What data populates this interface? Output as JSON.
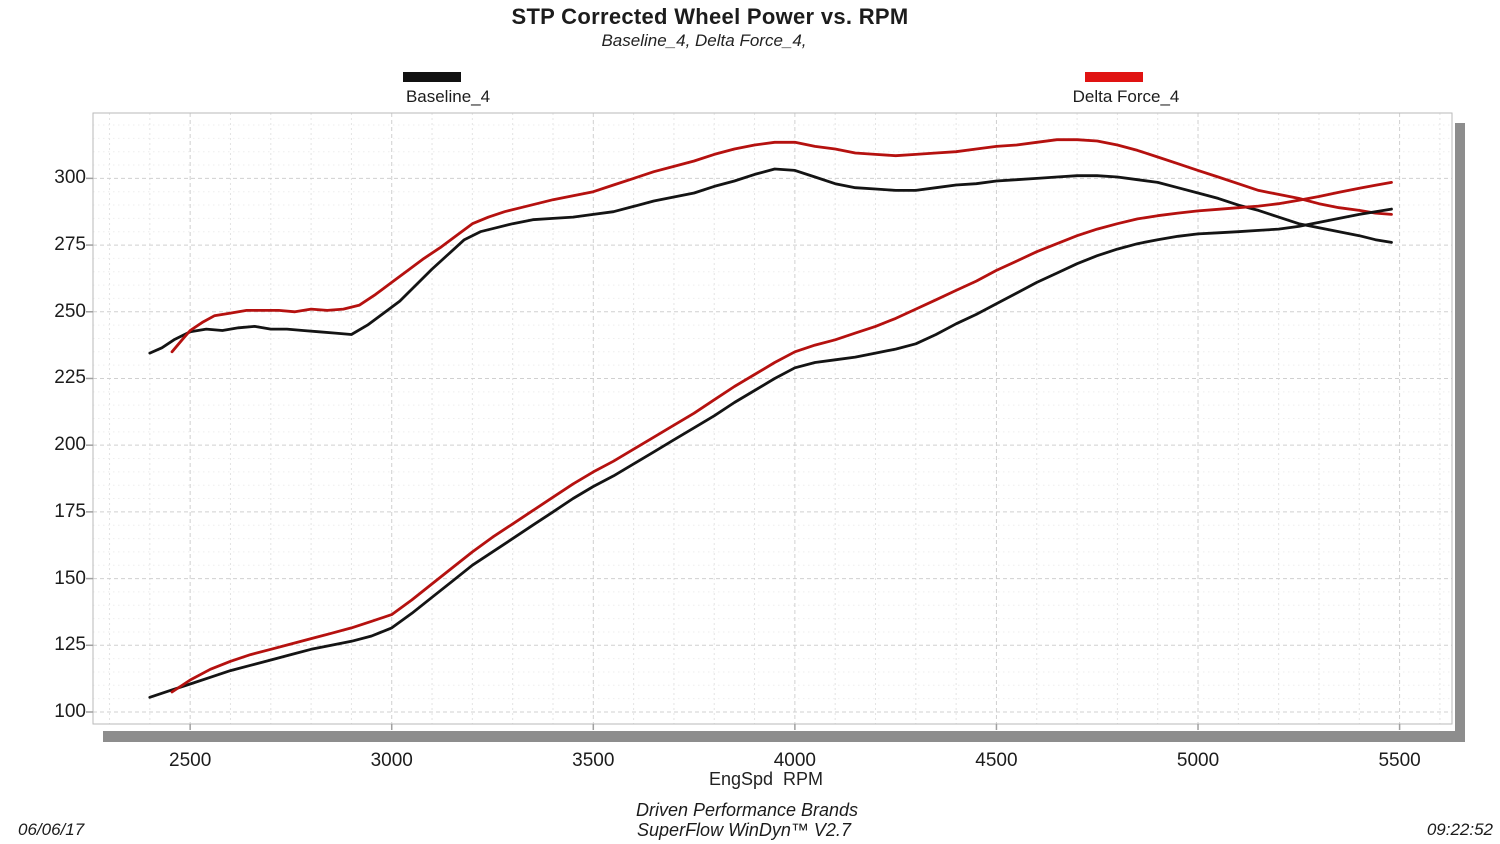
{
  "header": {
    "title": "STP Corrected Wheel Power vs. RPM",
    "subtitle": "Baseline_4, Delta Force_4,"
  },
  "footer": {
    "xaxis_unit_label": "EngSpd  RPM",
    "brand_line1": "Driven Performance Brands",
    "brand_line2": "SuperFlow WinDyn™ V2.7",
    "date": "06/06/17",
    "time": "09:22:52"
  },
  "colors": {
    "curve_black": "#141414",
    "curve_red": "#b5110f",
    "legend_black": "#111111",
    "legend_red": "#e01312",
    "grid_major": "#d0d0d0",
    "grid_minor_v": "#e4e4e4",
    "grid_minor_h": "#eeeeee",
    "frame": "#bababa",
    "shadow": "#8d8d8d",
    "tick": "#a0a0a0"
  },
  "chart_data": {
    "type": "line",
    "title": "STP Corrected Wheel Power vs. RPM",
    "subtitle": "Baseline_4, Delta Force_4,",
    "xlabel": "EngSpd  RPM",
    "ylabel": "",
    "grid": true,
    "legend_position": "top",
    "x_axis": {
      "range": [
        2259,
        5630
      ],
      "ticks": [
        2500,
        3000,
        3500,
        4000,
        4500,
        5000,
        5500
      ],
      "minor_step": 100
    },
    "y_axis": {
      "range": [
        95.5,
        324.5
      ],
      "ticks": [
        300,
        275,
        250,
        225,
        200,
        175,
        150,
        125,
        100
      ],
      "minor_step": 5
    },
    "legend": [
      {
        "label": "Baseline_4",
        "color": "#111111"
      },
      {
        "label": "Delta Force_4",
        "color": "#e01312"
      }
    ],
    "series": [
      {
        "id": "baseline_4_upper",
        "legend": "Baseline_4",
        "color": "#141414",
        "points": [
          [
            2400,
            234.5
          ],
          [
            2430,
            236.5
          ],
          [
            2460,
            239.5
          ],
          [
            2500,
            242.5
          ],
          [
            2540,
            243.5
          ],
          [
            2580,
            243
          ],
          [
            2620,
            244
          ],
          [
            2660,
            244.5
          ],
          [
            2700,
            243.5
          ],
          [
            2740,
            243.5
          ],
          [
            2780,
            243
          ],
          [
            2820,
            242.5
          ],
          [
            2860,
            242
          ],
          [
            2900,
            241.5
          ],
          [
            2940,
            245
          ],
          [
            2980,
            249.5
          ],
          [
            3020,
            254
          ],
          [
            3060,
            260
          ],
          [
            3100,
            266
          ],
          [
            3140,
            271.5
          ],
          [
            3180,
            277
          ],
          [
            3220,
            280
          ],
          [
            3260,
            281.5
          ],
          [
            3300,
            283
          ],
          [
            3350,
            284.5
          ],
          [
            3400,
            285
          ],
          [
            3450,
            285.5
          ],
          [
            3500,
            286.5
          ],
          [
            3550,
            287.5
          ],
          [
            3600,
            289.5
          ],
          [
            3650,
            291.5
          ],
          [
            3700,
            293
          ],
          [
            3750,
            294.5
          ],
          [
            3800,
            297
          ],
          [
            3850,
            299
          ],
          [
            3900,
            301.5
          ],
          [
            3950,
            303.5
          ],
          [
            4000,
            303
          ],
          [
            4050,
            300.5
          ],
          [
            4100,
            298
          ],
          [
            4150,
            296.5
          ],
          [
            4200,
            296
          ],
          [
            4250,
            295.5
          ],
          [
            4300,
            295.5
          ],
          [
            4350,
            296.5
          ],
          [
            4400,
            297.5
          ],
          [
            4450,
            298
          ],
          [
            4500,
            299
          ],
          [
            4550,
            299.5
          ],
          [
            4600,
            300
          ],
          [
            4650,
            300.5
          ],
          [
            4700,
            301
          ],
          [
            4750,
            301
          ],
          [
            4800,
            300.5
          ],
          [
            4850,
            299.5
          ],
          [
            4900,
            298.5
          ],
          [
            4950,
            296.5
          ],
          [
            5000,
            294.5
          ],
          [
            5050,
            292.5
          ],
          [
            5100,
            290
          ],
          [
            5150,
            288
          ],
          [
            5200,
            285.5
          ],
          [
            5250,
            283
          ],
          [
            5300,
            281.5
          ],
          [
            5350,
            280
          ],
          [
            5400,
            278.5
          ],
          [
            5440,
            277
          ],
          [
            5480,
            276
          ]
        ]
      },
      {
        "id": "delta_force_4_upper",
        "legend": "Delta Force_4",
        "color": "#b5110f",
        "points": [
          [
            2455,
            235
          ],
          [
            2480,
            239.5
          ],
          [
            2500,
            243
          ],
          [
            2530,
            246
          ],
          [
            2560,
            248.5
          ],
          [
            2600,
            249.5
          ],
          [
            2640,
            250.5
          ],
          [
            2680,
            250.5
          ],
          [
            2720,
            250.5
          ],
          [
            2760,
            250
          ],
          [
            2800,
            251
          ],
          [
            2840,
            250.5
          ],
          [
            2880,
            251
          ],
          [
            2920,
            252.5
          ],
          [
            2960,
            256.5
          ],
          [
            3000,
            261
          ],
          [
            3040,
            265.5
          ],
          [
            3080,
            270
          ],
          [
            3120,
            274
          ],
          [
            3160,
            278.5
          ],
          [
            3200,
            283
          ],
          [
            3240,
            285.5
          ],
          [
            3280,
            287.5
          ],
          [
            3320,
            289
          ],
          [
            3360,
            290.5
          ],
          [
            3400,
            292
          ],
          [
            3450,
            293.5
          ],
          [
            3500,
            295
          ],
          [
            3550,
            297.5
          ],
          [
            3600,
            300
          ],
          [
            3650,
            302.5
          ],
          [
            3700,
            304.5
          ],
          [
            3750,
            306.5
          ],
          [
            3800,
            309
          ],
          [
            3850,
            311
          ],
          [
            3900,
            312.5
          ],
          [
            3950,
            313.5
          ],
          [
            4000,
            313.5
          ],
          [
            4050,
            312
          ],
          [
            4100,
            311
          ],
          [
            4150,
            309.5
          ],
          [
            4200,
            309
          ],
          [
            4250,
            308.5
          ],
          [
            4300,
            309
          ],
          [
            4350,
            309.5
          ],
          [
            4400,
            310
          ],
          [
            4450,
            311
          ],
          [
            4500,
            312
          ],
          [
            4550,
            312.5
          ],
          [
            4600,
            313.5
          ],
          [
            4650,
            314.5
          ],
          [
            4700,
            314.5
          ],
          [
            4750,
            314
          ],
          [
            4800,
            312.5
          ],
          [
            4850,
            310.5
          ],
          [
            4900,
            308
          ],
          [
            4950,
            305.5
          ],
          [
            5000,
            303
          ],
          [
            5050,
            300.5
          ],
          [
            5100,
            298
          ],
          [
            5150,
            295.5
          ],
          [
            5200,
            294
          ],
          [
            5250,
            292.5
          ],
          [
            5300,
            290.5
          ],
          [
            5350,
            289
          ],
          [
            5400,
            288
          ],
          [
            5440,
            287
          ],
          [
            5480,
            286.5
          ]
        ]
      },
      {
        "id": "baseline_4_lower",
        "legend": "Baseline_4",
        "color": "#141414",
        "points": [
          [
            2400,
            105.5
          ],
          [
            2450,
            108
          ],
          [
            2500,
            110.5
          ],
          [
            2550,
            113
          ],
          [
            2600,
            115.5
          ],
          [
            2650,
            117.5
          ],
          [
            2700,
            119.5
          ],
          [
            2750,
            121.5
          ],
          [
            2800,
            123.5
          ],
          [
            2850,
            125
          ],
          [
            2900,
            126.5
          ],
          [
            2950,
            128.5
          ],
          [
            3000,
            131.5
          ],
          [
            3050,
            137
          ],
          [
            3100,
            143
          ],
          [
            3150,
            149
          ],
          [
            3200,
            155
          ],
          [
            3250,
            160
          ],
          [
            3300,
            165
          ],
          [
            3350,
            170
          ],
          [
            3400,
            175
          ],
          [
            3450,
            180
          ],
          [
            3500,
            184.5
          ],
          [
            3550,
            188.5
          ],
          [
            3600,
            193
          ],
          [
            3650,
            197.5
          ],
          [
            3700,
            202
          ],
          [
            3750,
            206.5
          ],
          [
            3800,
            211
          ],
          [
            3850,
            216
          ],
          [
            3900,
            220.5
          ],
          [
            3950,
            225
          ],
          [
            4000,
            229
          ],
          [
            4050,
            231
          ],
          [
            4100,
            232
          ],
          [
            4150,
            233
          ],
          [
            4200,
            234.5
          ],
          [
            4250,
            236
          ],
          [
            4300,
            238
          ],
          [
            4350,
            241.5
          ],
          [
            4400,
            245.5
          ],
          [
            4450,
            249
          ],
          [
            4500,
            253
          ],
          [
            4550,
            257
          ],
          [
            4600,
            261
          ],
          [
            4650,
            264.5
          ],
          [
            4700,
            268
          ],
          [
            4750,
            271
          ],
          [
            4800,
            273.5
          ],
          [
            4850,
            275.5
          ],
          [
            4900,
            277
          ],
          [
            4950,
            278.3
          ],
          [
            5000,
            279.2
          ],
          [
            5050,
            279.6
          ],
          [
            5100,
            280
          ],
          [
            5150,
            280.5
          ],
          [
            5200,
            281
          ],
          [
            5250,
            282
          ],
          [
            5300,
            283.5
          ],
          [
            5350,
            285
          ],
          [
            5400,
            286.5
          ],
          [
            5440,
            287.5
          ],
          [
            5480,
            288.5
          ]
        ]
      },
      {
        "id": "delta_force_4_lower",
        "legend": "Delta Force_4",
        "color": "#b5110f",
        "points": [
          [
            2455,
            107.5
          ],
          [
            2500,
            112
          ],
          [
            2550,
            116
          ],
          [
            2600,
            119
          ],
          [
            2650,
            121.5
          ],
          [
            2700,
            123.5
          ],
          [
            2750,
            125.5
          ],
          [
            2800,
            127.5
          ],
          [
            2850,
            129.5
          ],
          [
            2900,
            131.5
          ],
          [
            2950,
            134
          ],
          [
            3000,
            136.5
          ],
          [
            3050,
            142
          ],
          [
            3100,
            148
          ],
          [
            3150,
            154
          ],
          [
            3200,
            160
          ],
          [
            3250,
            165.5
          ],
          [
            3300,
            170.5
          ],
          [
            3350,
            175.5
          ],
          [
            3400,
            180.5
          ],
          [
            3450,
            185.5
          ],
          [
            3500,
            190
          ],
          [
            3550,
            194
          ],
          [
            3600,
            198.5
          ],
          [
            3650,
            203
          ],
          [
            3700,
            207.5
          ],
          [
            3750,
            212
          ],
          [
            3800,
            217
          ],
          [
            3850,
            222
          ],
          [
            3900,
            226.5
          ],
          [
            3950,
            231
          ],
          [
            4000,
            235
          ],
          [
            4050,
            237.5
          ],
          [
            4100,
            239.5
          ],
          [
            4150,
            242
          ],
          [
            4200,
            244.5
          ],
          [
            4250,
            247.5
          ],
          [
            4300,
            251
          ],
          [
            4350,
            254.5
          ],
          [
            4400,
            258
          ],
          [
            4450,
            261.5
          ],
          [
            4500,
            265.5
          ],
          [
            4550,
            269
          ],
          [
            4600,
            272.5
          ],
          [
            4650,
            275.5
          ],
          [
            4700,
            278.5
          ],
          [
            4750,
            281
          ],
          [
            4800,
            283
          ],
          [
            4850,
            284.8
          ],
          [
            4900,
            286
          ],
          [
            4950,
            287
          ],
          [
            5000,
            287.8
          ],
          [
            5050,
            288.4
          ],
          [
            5100,
            289
          ],
          [
            5150,
            289.6
          ],
          [
            5200,
            290.5
          ],
          [
            5250,
            291.8
          ],
          [
            5300,
            293.2
          ],
          [
            5350,
            294.8
          ],
          [
            5400,
            296.3
          ],
          [
            5440,
            297.4
          ],
          [
            5480,
            298.5
          ]
        ]
      }
    ]
  }
}
